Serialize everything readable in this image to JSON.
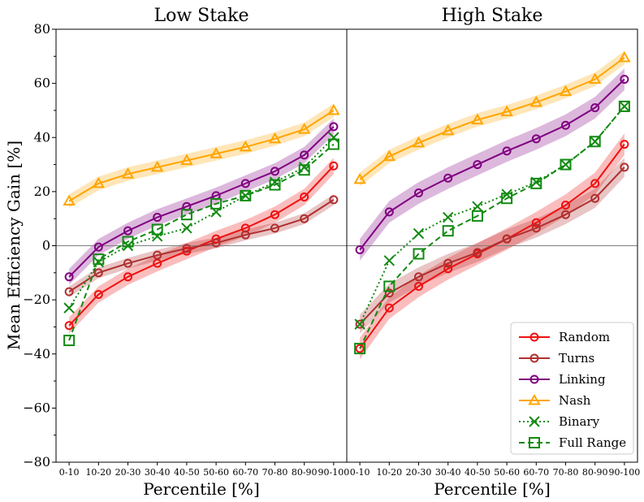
{
  "chart_data": {
    "type": "line",
    "ylabel": "Mean Efficiency Gain [%]",
    "xlabel": "Percentile [%]",
    "ylim": [
      -80,
      80
    ],
    "yticks": [
      -80,
      -60,
      -40,
      -20,
      0,
      20,
      40,
      60,
      80
    ],
    "ytick_labels": [
      "−80",
      "−60",
      "−40",
      "−20",
      "0",
      "20",
      "40",
      "60",
      "80"
    ],
    "categories": [
      "0-10",
      "10-20",
      "20-30",
      "30-40",
      "40-50",
      "50-60",
      "60-70",
      "70-80",
      "80-90",
      "90-100"
    ],
    "legend_position": "lower-right",
    "zero_line": true,
    "panels": [
      {
        "title": "Low Stake",
        "series": [
          {
            "name": "Random",
            "color": "#ee1111",
            "marker": "circle",
            "dash": "solid",
            "values": [
              -29.5,
              -18,
              -11.5,
              -6.5,
              -2,
              2.5,
              6.5,
              11.5,
              18,
              29.5
            ],
            "band": 3
          },
          {
            "name": "Turns",
            "color": "#b03030",
            "marker": "circle",
            "dash": "solid",
            "values": [
              -17,
              -10,
              -6.5,
              -3.5,
              -1,
              1,
              4,
              6.5,
              10,
              17
            ],
            "band": 2
          },
          {
            "name": "Linking",
            "color": "#800080",
            "marker": "circle",
            "dash": "solid",
            "values": [
              -11.5,
              -0.5,
              5.5,
              10.5,
              14.5,
              18.5,
              23,
              27.5,
              33.5,
              44
            ],
            "band": 3
          },
          {
            "name": "Nash",
            "color": "#ffa500",
            "marker": "triangle",
            "dash": "solid",
            "values": [
              16.5,
              23,
              26.5,
              29,
              31.5,
              34,
              36.5,
              39.5,
              43,
              50
            ],
            "band": 2.5
          },
          {
            "name": "Binary",
            "color": "#128a12",
            "marker": "x",
            "dash": "dotted",
            "values": [
              -23,
              -6,
              0,
              3.5,
              6.5,
              12.5,
              18.5,
              23.5,
              29,
              40
            ],
            "band": 0
          },
          {
            "name": "Full Range",
            "color": "#128a12",
            "marker": "square",
            "dash": "dashed",
            "values": [
              -35,
              -5,
              1.5,
              6,
              11.5,
              15.5,
              18.5,
              22.5,
              28,
              37.5
            ],
            "band": 0
          }
        ]
      },
      {
        "title": "High Stake",
        "series": [
          {
            "name": "Random",
            "color": "#ee1111",
            "marker": "circle",
            "dash": "solid",
            "values": [
              -38,
              -23,
              -15,
              -8.5,
              -3,
              2.5,
              8.5,
              15,
              23,
              37.5
            ],
            "band": 4
          },
          {
            "name": "Turns",
            "color": "#b03030",
            "marker": "circle",
            "dash": "solid",
            "values": [
              -29,
              -17.5,
              -11.5,
              -6.5,
              -2.5,
              2.5,
              6.5,
              11.5,
              17.5,
              29
            ],
            "band": 3.5
          },
          {
            "name": "Linking",
            "color": "#800080",
            "marker": "circle",
            "dash": "solid",
            "values": [
              -1.5,
              12.5,
              19.5,
              25,
              30,
              35,
              39.5,
              44.5,
              51,
              61.5
            ],
            "band": 4
          },
          {
            "name": "Nash",
            "color": "#ffa500",
            "marker": "triangle",
            "dash": "solid",
            "values": [
              24.5,
              33,
              38,
              42.5,
              46.5,
              49.5,
              53,
              57,
              61.5,
              69.5
            ],
            "band": 2.5
          },
          {
            "name": "Binary",
            "color": "#128a12",
            "marker": "x",
            "dash": "dotted",
            "values": [
              -29,
              -5.5,
              4.5,
              10.5,
              14.5,
              19,
              23.5,
              30,
              38.5,
              51.5
            ],
            "band": 0
          },
          {
            "name": "Full Range",
            "color": "#128a12",
            "marker": "square",
            "dash": "dashed",
            "values": [
              -38,
              -15,
              -3,
              5.5,
              11,
              17.5,
              23,
              30,
              38.5,
              51.5
            ],
            "band": 0
          }
        ]
      }
    ]
  }
}
